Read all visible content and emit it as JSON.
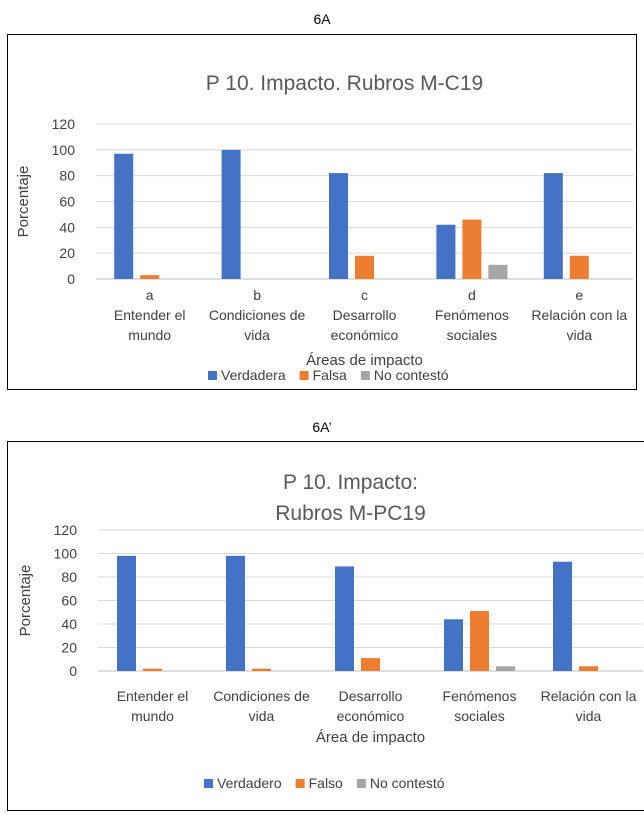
{
  "panels": [
    {
      "label": "6A"
    },
    {
      "label": "6A’"
    }
  ],
  "colors": {
    "verdadero": "#4472C4",
    "falso": "#ED7D31",
    "no_contesto": "#A5A5A5",
    "grid": "#D9D9D9",
    "text": "#404040"
  },
  "chart_data": [
    {
      "type": "bar",
      "title": "P 10. Impacto. Rubros M-C19",
      "xlabel": "Áreas de impacto",
      "ylabel": "Porcentaje",
      "ylim": [
        0,
        120
      ],
      "yticks": [
        "0",
        "20",
        "40",
        "60",
        "80",
        "100",
        "120"
      ],
      "grid": true,
      "legend_position": "bottom",
      "categories": [
        [
          "a",
          "Entender el",
          "mundo"
        ],
        [
          "b",
          "Condiciones de",
          "vida"
        ],
        [
          "c",
          "Desarrollo",
          "económico"
        ],
        [
          "d",
          "Fenómenos",
          "sociales"
        ],
        [
          "e",
          "Relación con la",
          "vida"
        ]
      ],
      "series": [
        {
          "name": "Verdadera",
          "values": [
            97,
            100,
            82,
            42,
            82
          ]
        },
        {
          "name": "Falsa",
          "values": [
            3,
            0,
            18,
            46,
            18
          ]
        },
        {
          "name": "No contestó",
          "values": [
            0,
            0,
            0,
            11,
            0
          ]
        }
      ]
    },
    {
      "type": "bar",
      "title": [
        "P 10. Impacto:",
        "Rubros M-PC19"
      ],
      "xlabel": "Área de impacto",
      "ylabel": "Porcentaje",
      "ylim": [
        0,
        120
      ],
      "yticks": [
        "0",
        "20",
        "40",
        "60",
        "80",
        "100",
        "120"
      ],
      "grid": true,
      "legend_position": "bottom",
      "categories": [
        [
          "Entender el",
          "mundo"
        ],
        [
          "Condiciones de",
          "vida"
        ],
        [
          "Desarrollo",
          "económico"
        ],
        [
          "Fenómenos",
          "sociales"
        ],
        [
          "Relación con la",
          "vida"
        ]
      ],
      "series": [
        {
          "name": "Verdadero",
          "values": [
            98,
            98,
            89,
            44,
            93
          ]
        },
        {
          "name": "Falso",
          "values": [
            2,
            2,
            11,
            51,
            4
          ]
        },
        {
          "name": "No contestó",
          "values": [
            0,
            0,
            0,
            4,
            0
          ]
        }
      ]
    }
  ]
}
